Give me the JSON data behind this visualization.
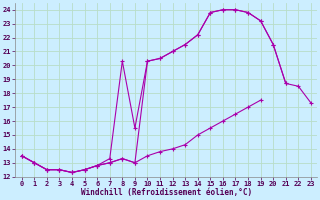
{
  "xlabel": "Windchill (Refroidissement éolien,°C)",
  "bg_color": "#cceeff",
  "grid_color": "#b8ddc8",
  "line_color": "#aa00aa",
  "xlim": [
    -0.5,
    23.5
  ],
  "ylim": [
    12,
    24.5
  ],
  "xticks": [
    0,
    1,
    2,
    3,
    4,
    5,
    6,
    7,
    8,
    9,
    10,
    11,
    12,
    13,
    14,
    15,
    16,
    17,
    18,
    19,
    20,
    21,
    22,
    23
  ],
  "yticks": [
    12,
    13,
    14,
    15,
    16,
    17,
    18,
    19,
    20,
    21,
    22,
    23,
    24
  ],
  "c1x": [
    0,
    1,
    2,
    3,
    4,
    5,
    6,
    7,
    8,
    9,
    10,
    11,
    12,
    13,
    14,
    15,
    16,
    17,
    18,
    19,
    20,
    21
  ],
  "c1y": [
    13.5,
    13.0,
    12.5,
    12.5,
    12.3,
    12.5,
    12.8,
    13.3,
    20.3,
    15.5,
    20.3,
    20.5,
    21.0,
    21.5,
    22.2,
    23.8,
    24.0,
    24.0,
    23.8,
    23.2,
    21.5,
    18.7
  ],
  "c2x": [
    0,
    1,
    2,
    3,
    4,
    5,
    6,
    7,
    8,
    9,
    10,
    11,
    12,
    13,
    14,
    15,
    16,
    17,
    18,
    19,
    20,
    21,
    22,
    23
  ],
  "c2y": [
    13.5,
    13.0,
    12.5,
    12.5,
    12.3,
    12.5,
    12.8,
    13.0,
    13.3,
    13.0,
    20.3,
    20.5,
    21.0,
    21.5,
    22.2,
    23.8,
    24.0,
    24.0,
    23.8,
    23.2,
    21.5,
    18.7,
    18.5,
    17.3
  ],
  "c3x": [
    0,
    1,
    2,
    3,
    4,
    5,
    6,
    7,
    8,
    9,
    10,
    11,
    12,
    13,
    14,
    15,
    16,
    17,
    18,
    19
  ],
  "c3y": [
    13.5,
    13.0,
    12.5,
    12.5,
    12.3,
    12.5,
    12.8,
    13.0,
    13.3,
    13.0,
    13.5,
    13.8,
    14.0,
    14.3,
    15.0,
    15.5,
    16.0,
    16.5,
    17.0,
    17.5
  ]
}
